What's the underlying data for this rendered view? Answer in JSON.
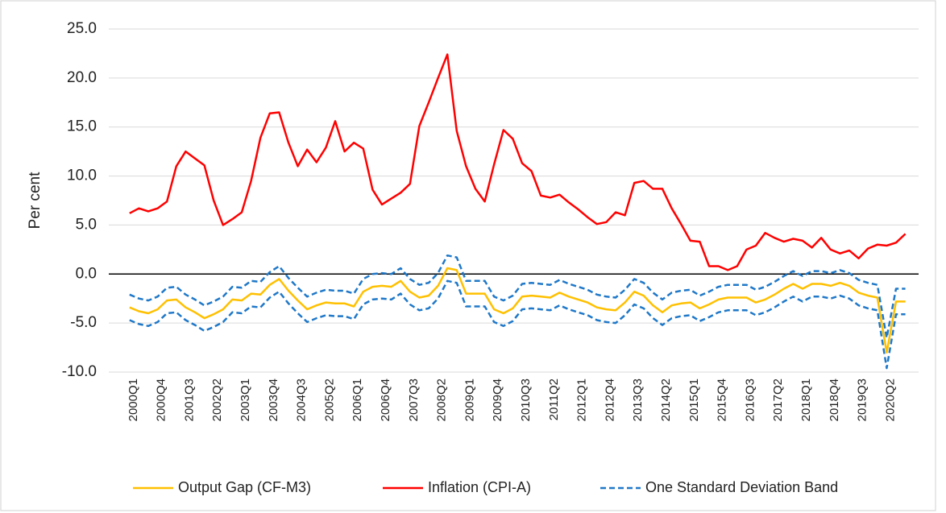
{
  "chart_data": {
    "type": "line",
    "y_label": "Per cent",
    "categories": [
      "2000Q1",
      null,
      null,
      "2000Q4",
      null,
      null,
      "2001Q3",
      null,
      null,
      "2002Q2",
      null,
      null,
      "2003Q1",
      null,
      null,
      "2003Q4",
      null,
      null,
      "2004Q3",
      null,
      null,
      "2005Q2",
      null,
      null,
      "2006Q1",
      null,
      null,
      "2006Q4",
      null,
      null,
      "2007Q3",
      null,
      null,
      "2008Q2",
      null,
      null,
      "2009Q1",
      null,
      null,
      "2009Q4",
      null,
      null,
      "2010Q3",
      null,
      null,
      "2011Q2",
      null,
      null,
      "2012Q1",
      null,
      null,
      "2012Q4",
      null,
      null,
      "2013Q3",
      null,
      null,
      "2014Q2",
      null,
      null,
      "2015Q1",
      null,
      null,
      "2015Q4",
      null,
      null,
      "2016Q3",
      null,
      null,
      "2017Q2",
      null,
      null,
      "2018Q1",
      null,
      null,
      "2018Q4",
      null,
      null,
      "2019Q3",
      null,
      null,
      "2020Q2",
      null,
      null
    ],
    "series": [
      {
        "name": "Output Gap (CF-M3)",
        "color": "#ffc000",
        "values": [
          -3.4,
          -3.8,
          -4.0,
          -3.6,
          -2.7,
          -2.6,
          -3.4,
          -3.9,
          -4.5,
          -4.1,
          -3.6,
          -2.6,
          -2.7,
          -2.0,
          -2.1,
          -1.1,
          -0.5,
          -1.7,
          -2.7,
          -3.6,
          -3.2,
          -2.9,
          -3.0,
          -3.0,
          -3.3,
          -1.8,
          -1.3,
          -1.2,
          -1.3,
          -0.7,
          -1.8,
          -2.4,
          -2.2,
          -1.2,
          0.6,
          0.4,
          -2.0,
          -2.0,
          -2.0,
          -3.6,
          -4.0,
          -3.5,
          -2.3,
          -2.2,
          -2.3,
          -2.4,
          -1.9,
          -2.3,
          -2.6,
          -2.9,
          -3.4,
          -3.6,
          -3.7,
          -2.9,
          -1.8,
          -2.2,
          -3.2,
          -3.9,
          -3.2,
          -3.0,
          -2.9,
          -3.5,
          -3.1,
          -2.6,
          -2.4,
          -2.4,
          -2.4,
          -2.9,
          -2.6,
          -2.1,
          -1.5,
          -1.0,
          -1.5,
          -1.0,
          -1.0,
          -1.2,
          -0.9,
          -1.2,
          -1.9,
          -2.2,
          -2.4,
          -8.0,
          -2.8,
          -2.8
        ]
      },
      {
        "name": "Inflation (CPI-A)",
        "color": "#ff0000",
        "values": [
          6.2,
          6.7,
          6.4,
          6.7,
          7.4,
          11.0,
          12.5,
          11.8,
          11.1,
          7.5,
          5.0,
          5.6,
          6.3,
          9.5,
          13.9,
          16.4,
          16.5,
          13.4,
          11.0,
          12.7,
          11.4,
          12.9,
          15.6,
          12.5,
          13.4,
          12.8,
          8.6,
          7.1,
          7.7,
          8.3,
          9.2,
          15.1,
          17.5,
          20.0,
          22.4,
          14.6,
          11.0,
          8.7,
          7.4,
          11.2,
          14.7,
          13.8,
          11.3,
          10.5,
          8.0,
          7.8,
          8.1,
          7.3,
          6.6,
          5.8,
          5.1,
          5.3,
          6.3,
          6.0,
          9.3,
          9.5,
          8.7,
          8.7,
          6.7,
          5.1,
          3.4,
          3.3,
          0.8,
          0.8,
          0.4,
          0.8,
          2.5,
          2.9,
          4.2,
          3.7,
          3.3,
          3.6,
          3.4,
          2.7,
          3.7,
          2.5,
          2.1,
          2.4,
          1.6,
          2.6,
          3.0,
          2.9,
          3.2,
          4.1
        ]
      },
      {
        "name": "One Standard Deviation Band",
        "color": "#1f78c8",
        "dashed": true,
        "upper": [
          -2.1,
          -2.5,
          -2.7,
          -2.3,
          -1.4,
          -1.3,
          -2.1,
          -2.6,
          -3.2,
          -2.8,
          -2.3,
          -1.3,
          -1.4,
          -0.7,
          -0.8,
          0.2,
          0.8,
          -0.4,
          -1.4,
          -2.3,
          -1.9,
          -1.6,
          -1.7,
          -1.7,
          -2.0,
          -0.5,
          0.0,
          0.1,
          0.0,
          0.6,
          -0.5,
          -1.1,
          -0.9,
          0.1,
          1.9,
          1.7,
          -0.7,
          -0.7,
          -0.7,
          -2.3,
          -2.7,
          -2.2,
          -1.0,
          -0.9,
          -1.0,
          -1.1,
          -0.6,
          -1.0,
          -1.3,
          -1.6,
          -2.1,
          -2.3,
          -2.4,
          -1.6,
          -0.5,
          -0.9,
          -1.9,
          -2.6,
          -1.9,
          -1.7,
          -1.6,
          -2.2,
          -1.8,
          -1.3,
          -1.1,
          -1.1,
          -1.1,
          -1.6,
          -1.3,
          -0.8,
          -0.2,
          0.3,
          -0.2,
          0.3,
          0.3,
          0.1,
          0.4,
          0.1,
          -0.6,
          -0.9,
          -1.1,
          -6.5,
          -1.5,
          -1.5
        ],
        "lower": [
          -4.7,
          -5.1,
          -5.3,
          -4.9,
          -4.0,
          -3.9,
          -4.7,
          -5.2,
          -5.8,
          -5.4,
          -4.9,
          -3.9,
          -4.0,
          -3.3,
          -3.4,
          -2.4,
          -1.8,
          -3.0,
          -4.0,
          -4.9,
          -4.5,
          -4.2,
          -4.3,
          -4.3,
          -4.6,
          -3.1,
          -2.6,
          -2.5,
          -2.6,
          -2.0,
          -3.1,
          -3.7,
          -3.5,
          -2.5,
          -0.7,
          -0.9,
          -3.3,
          -3.3,
          -3.3,
          -4.9,
          -5.3,
          -4.8,
          -3.6,
          -3.5,
          -3.6,
          -3.7,
          -3.2,
          -3.6,
          -3.9,
          -4.2,
          -4.7,
          -4.9,
          -5.0,
          -4.2,
          -3.1,
          -3.5,
          -4.5,
          -5.2,
          -4.5,
          -4.3,
          -4.2,
          -4.8,
          -4.4,
          -3.9,
          -3.7,
          -3.7,
          -3.7,
          -4.2,
          -3.9,
          -3.4,
          -2.8,
          -2.3,
          -2.8,
          -2.3,
          -2.3,
          -2.5,
          -2.2,
          -2.5,
          -3.2,
          -3.5,
          -3.7,
          -9.6,
          -4.1,
          -4.1
        ]
      }
    ],
    "ylim": [
      -10,
      25
    ],
    "yticks": [
      {
        "value": -10,
        "label": "-10.0"
      },
      {
        "value": -5,
        "label": "-5.0"
      },
      {
        "value": 0,
        "label": "0.0"
      },
      {
        "value": 5,
        "label": "5.0"
      },
      {
        "value": 10,
        "label": "10.0"
      },
      {
        "value": 15,
        "label": "15.0"
      },
      {
        "value": 20,
        "label": "20.0"
      },
      {
        "value": 25,
        "label": "25.0"
      }
    ],
    "grid": true,
    "legend": "bottom"
  }
}
